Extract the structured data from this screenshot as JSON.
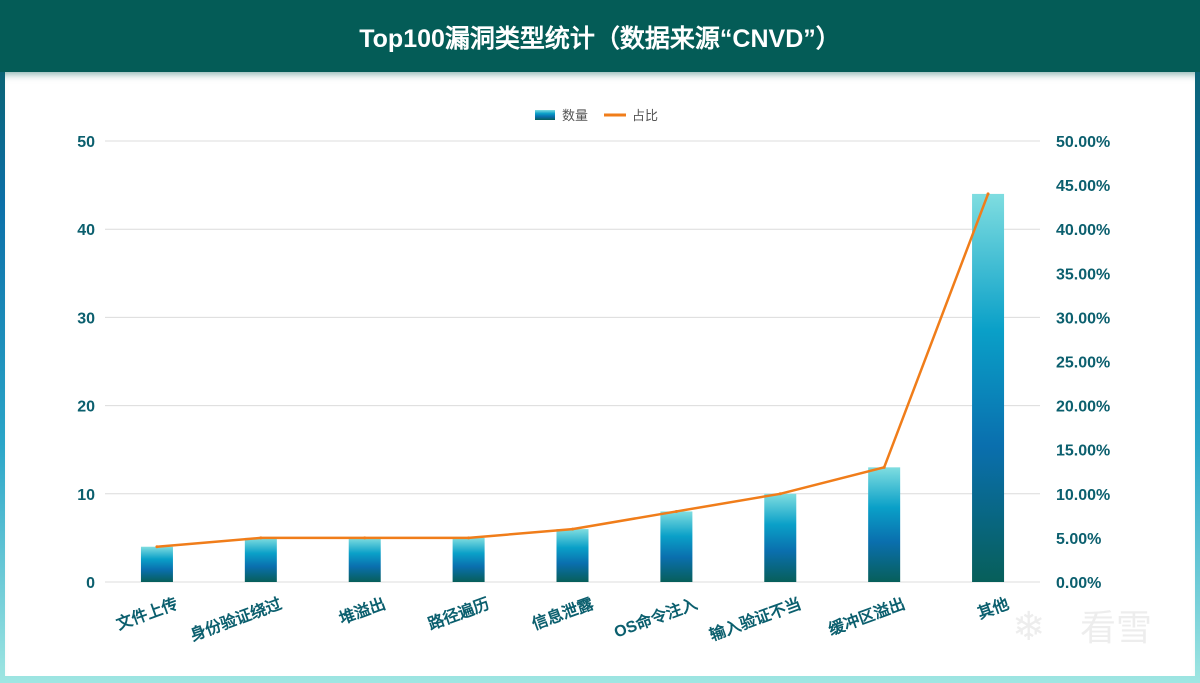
{
  "title": "Top100漏洞类型统计（数据来源“CNVD”）",
  "watermark": "看雪",
  "chart_data": {
    "type": "bar",
    "title": "Top100漏洞类型统计（数据来源“CNVD”）",
    "categories": [
      "文件上传",
      "身份验证绕过",
      "堆溢出",
      "路径遍历",
      "信息泄露",
      "OS命令注入",
      "输入验证不当",
      "缓冲区溢出",
      "其他"
    ],
    "series": [
      {
        "name": "数量",
        "type": "bar",
        "axis": "left",
        "values": [
          4,
          5,
          5,
          5,
          6,
          8,
          10,
          13,
          44
        ],
        "color": "#0b6fa8"
      },
      {
        "name": "占比",
        "type": "line",
        "axis": "right",
        "values": [
          4,
          5,
          5,
          5,
          6,
          8,
          10,
          13,
          44
        ],
        "color": "#f07d1a"
      }
    ],
    "ylim": [
      0,
      50
    ],
    "yticks": [
      0,
      10,
      20,
      30,
      40,
      50
    ],
    "y2lim": [
      0,
      50
    ],
    "y2ticks": [
      "0.00%",
      "5.00%",
      "10.00%",
      "15.00%",
      "20.00%",
      "25.00%",
      "30.00%",
      "35.00%",
      "40.00%",
      "45.00%",
      "50.00%"
    ],
    "legend": "top-center",
    "grid": true
  }
}
